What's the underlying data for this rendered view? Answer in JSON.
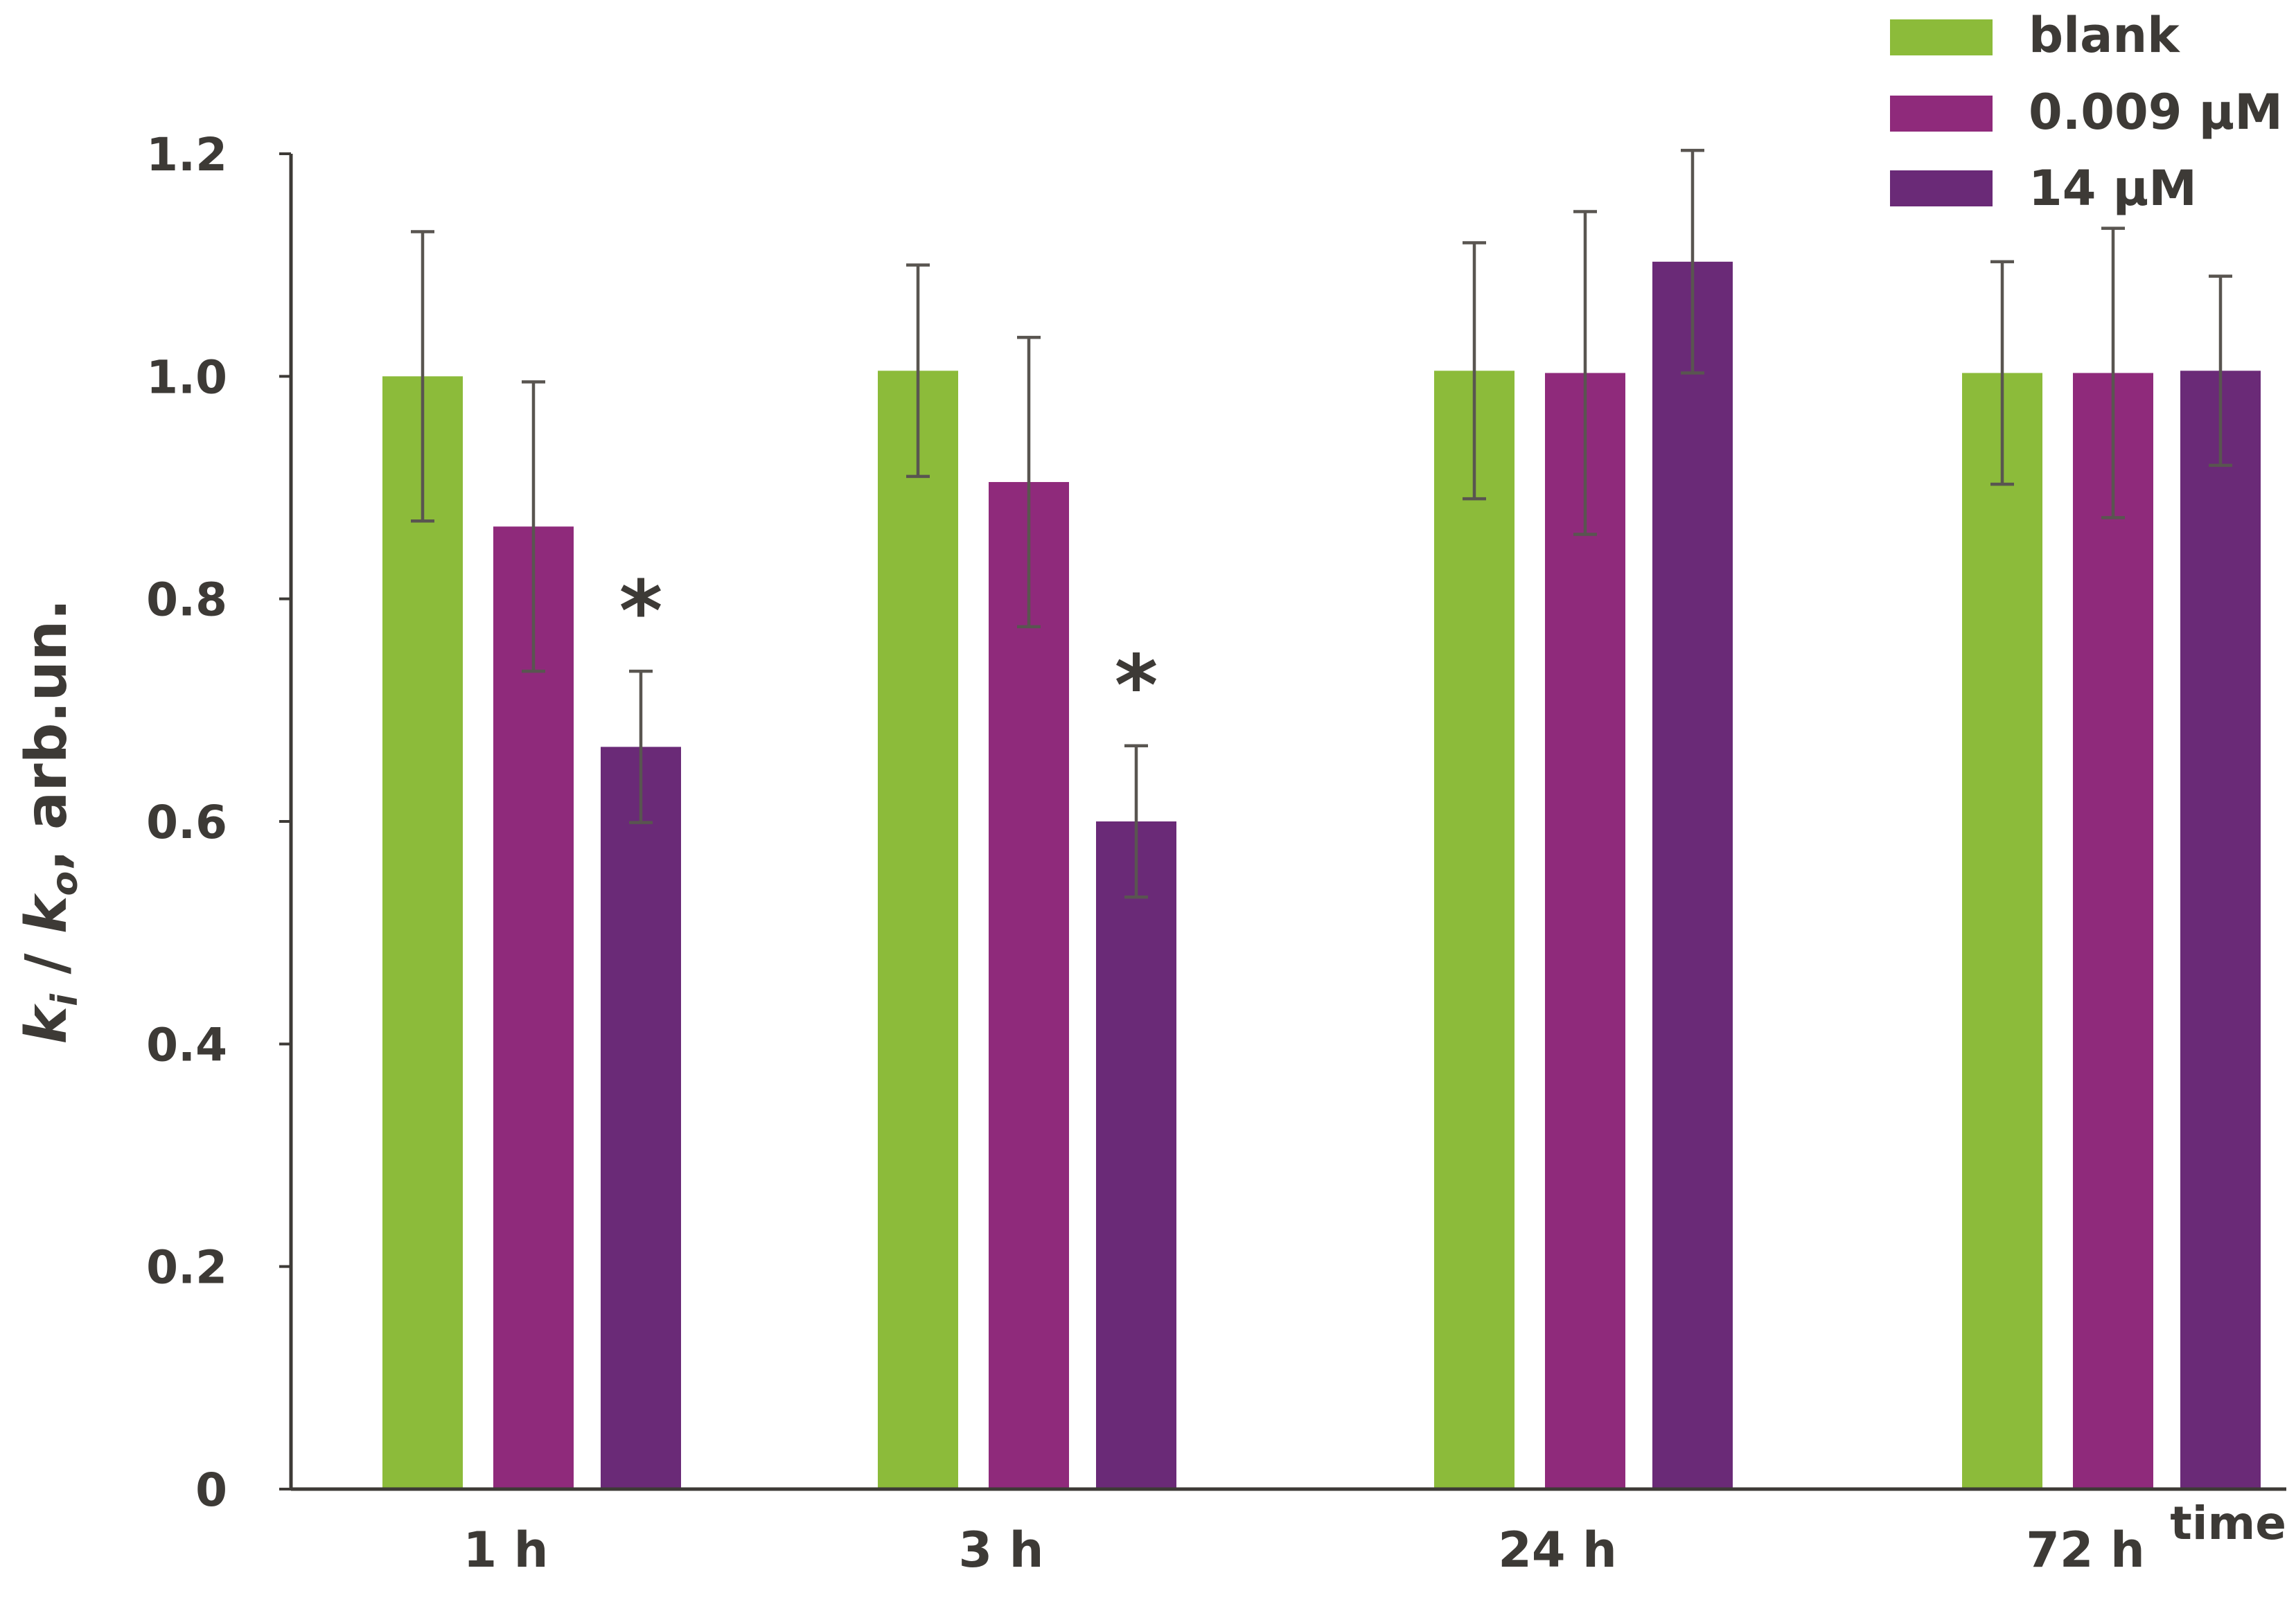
{
  "chart_data": {
    "type": "bar",
    "title": "",
    "xlabel": "time",
    "ylabel": {
      "k_i": "k",
      "sub_i": "i",
      "sep": " / ",
      "k_o": "k",
      "sub_o": "o",
      "rest": ", arb.un."
    },
    "ylim": [
      0,
      1.2
    ],
    "yticks": [
      {
        "value": 0,
        "label": "0"
      },
      {
        "value": 0.2,
        "label": "0.2"
      },
      {
        "value": 0.4,
        "label": "0.4"
      },
      {
        "value": 0.6,
        "label": "0.6"
      },
      {
        "value": 0.8,
        "label": "0.8"
      },
      {
        "value": 1.0,
        "label": "1.0"
      },
      {
        "value": 1.2,
        "label": "1.2"
      }
    ],
    "categories": [
      "1 h",
      "3 h",
      "24 h",
      "72 h"
    ],
    "series": [
      {
        "name": "blank",
        "color": "#8cbb3a",
        "values": [
          1.0,
          1.005,
          1.005,
          1.003
        ],
        "errors": [
          0.13,
          0.095,
          0.115,
          0.1
        ]
      },
      {
        "name": "0.009 μM",
        "color": "#8f2a7b",
        "values": [
          0.865,
          0.905,
          1.003,
          1.003
        ],
        "errors": [
          0.13,
          0.13,
          0.145,
          0.13
        ]
      },
      {
        "name": "14 μM",
        "color": "#6a2a77",
        "values": [
          0.667,
          0.6,
          1.103,
          1.005
        ],
        "errors": [
          0.068,
          0.068,
          0.1,
          0.085
        ]
      }
    ],
    "annotations": [
      {
        "category": "1 h",
        "series": "14 μM",
        "text": "*"
      },
      {
        "category": "3 h",
        "series": "14 μM",
        "text": "*"
      }
    ],
    "legend": {
      "position": "top-right"
    },
    "grid": false
  }
}
